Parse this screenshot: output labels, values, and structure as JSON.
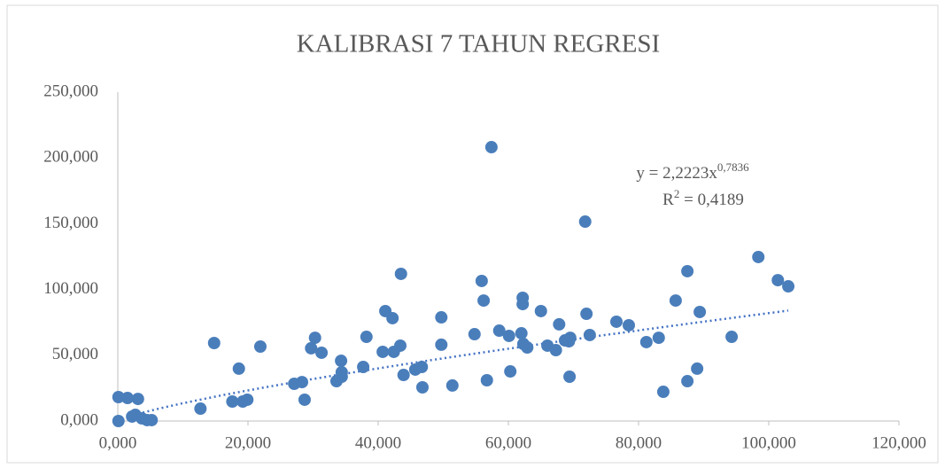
{
  "chart_data": {
    "type": "scatter",
    "title": "KALIBRASI 7 TAHUN REGRESI",
    "x": [
      0.1,
      0.1,
      1.5,
      3.1,
      2.2,
      2.7,
      3.7,
      4.5,
      5.2,
      12.7,
      14.8,
      17.6,
      18.6,
      19.2,
      19.9,
      21.9,
      27.1,
      28.3,
      28.7,
      29.7,
      30.3,
      31.3,
      33.6,
      34.3,
      34.4,
      34.4,
      37.7,
      38.2,
      40.7,
      41.1,
      42.2,
      42.4,
      43.4,
      43.5,
      43.9,
      45.7,
      46.7,
      46.8,
      49.7,
      49.7,
      51.4,
      54.8,
      55.9,
      56.2,
      56.7,
      57.4,
      58.6,
      60.1,
      60.3,
      62.0,
      62.2,
      62.2,
      62.3,
      62.9,
      65.0,
      66.0,
      67.3,
      67.8,
      68.7,
      69.3,
      69.5,
      69.4,
      71.8,
      72.0,
      72.5,
      76.6,
      78.5,
      81.2,
      83.1,
      83.8,
      85.7,
      87.5,
      87.5,
      89.0,
      89.4,
      94.3,
      98.4,
      101.4,
      103.0
    ],
    "values": [
      0,
      18.2,
      17.5,
      16.8,
      3.4,
      4.7,
      2.0,
      0.7,
      0.7,
      9.4,
      59.3,
      14.8,
      39.8,
      14.8,
      16.2,
      56.6,
      28.3,
      29.6,
      16.2,
      55.3,
      63.3,
      51.9,
      30.3,
      45.8,
      33.7,
      37.1,
      41.1,
      64.0,
      52.6,
      83.6,
      78.2,
      52.6,
      57.3,
      111.9,
      35.0,
      39.1,
      41.1,
      25.6,
      78.8,
      58.0,
      27.0,
      66.0,
      106.5,
      91.6,
      31.0,
      208.2,
      68.7,
      64.7,
      37.7,
      66.7,
      88.9,
      93.7,
      58.6,
      55.9,
      83.6,
      57.3,
      53.9,
      73.5,
      61.3,
      60.6,
      63.3,
      33.7,
      151.6,
      81.5,
      65.4,
      75.5,
      72.8,
      60.0,
      63.3,
      22.2,
      91.6,
      30.3,
      113.9,
      39.8,
      82.9,
      64.0,
      124.7,
      107.1,
      102.4
    ],
    "color": "#4a7ebb",
    "xlim": [
      0,
      120
    ],
    "xticks": [
      {
        "value": 0,
        "label": "0,000"
      },
      {
        "value": 20,
        "label": "20,000"
      },
      {
        "value": 40,
        "label": "40,000"
      },
      {
        "value": 60,
        "label": "60,000"
      },
      {
        "value": 80,
        "label": "80,000"
      },
      {
        "value": 100,
        "label": "100,000"
      },
      {
        "value": 120,
        "label": "120,000"
      }
    ],
    "ylim": [
      0,
      250
    ],
    "yticks": [
      {
        "value": 0,
        "label": "0,000"
      },
      {
        "value": 50,
        "label": "50,000"
      },
      {
        "value": 100,
        "label": "100,000"
      },
      {
        "value": 150,
        "label": "150,000"
      },
      {
        "value": 200,
        "label": "200,000"
      },
      {
        "value": 250,
        "label": "250,000"
      }
    ],
    "grid": false,
    "trendline": {
      "coefficient": 2.2223,
      "exponent": 0.7836,
      "r_squared": 0.4189,
      "color": "#4472c4",
      "equation": "y = 2,2223x",
      "exponent_label": "0,7836",
      "r2_symbol": "R",
      "r2_power": "2",
      "r2_value": " = 0,4189"
    }
  }
}
